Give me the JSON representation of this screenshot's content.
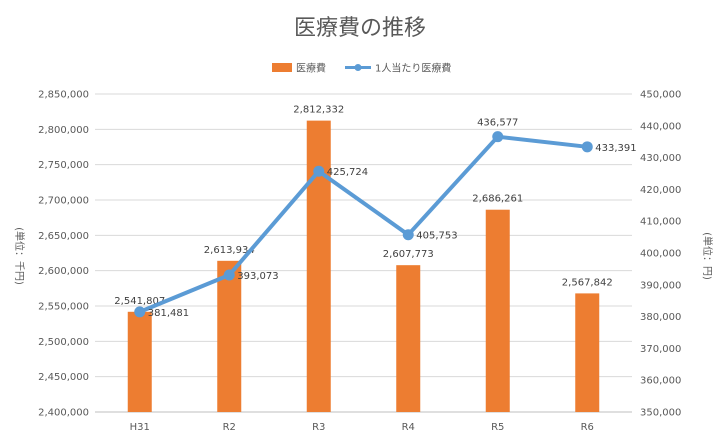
{
  "chart_data": {
    "type": "bar",
    "title": "医療費の推移",
    "categories": [
      "H31",
      "R2",
      "R3",
      "R4",
      "R5",
      "R6"
    ],
    "series": [
      {
        "name": "医療費",
        "type": "bar",
        "axis": "left",
        "color": "#ED7D31",
        "values": [
          2541807,
          2613934,
          2812332,
          2607773,
          2686261,
          2567842
        ],
        "labels": [
          "2,541,807",
          "2,613,934",
          "2,812,332",
          "2,607,773",
          "2,686,261",
          "2,567,842"
        ]
      },
      {
        "name": "1人当たり医療費",
        "type": "line",
        "axis": "right",
        "color": "#5B9BD5",
        "values": [
          381481,
          393073,
          425724,
          405753,
          436577,
          433391
        ],
        "labels": [
          "381,481",
          "393,073",
          "425,724",
          "405,753",
          "436,577",
          "433,391"
        ]
      }
    ],
    "y_left": {
      "label": "(単位：千円)",
      "lim": [
        2400000,
        2850000
      ],
      "ticks": [
        "2,400,000",
        "2,450,000",
        "2,500,000",
        "2,550,000",
        "2,600,000",
        "2,650,000",
        "2,700,000",
        "2,750,000",
        "2,800,000",
        "2,850,000"
      ]
    },
    "y_right": {
      "label": "(単位：円)",
      "lim": [
        350000,
        450000
      ],
      "ticks": [
        "350,000",
        "360,000",
        "370,000",
        "380,000",
        "390,000",
        "400,000",
        "410,000",
        "420,000",
        "430,000",
        "440,000",
        "450,000"
      ]
    },
    "grid": true,
    "legend_position": "top"
  }
}
